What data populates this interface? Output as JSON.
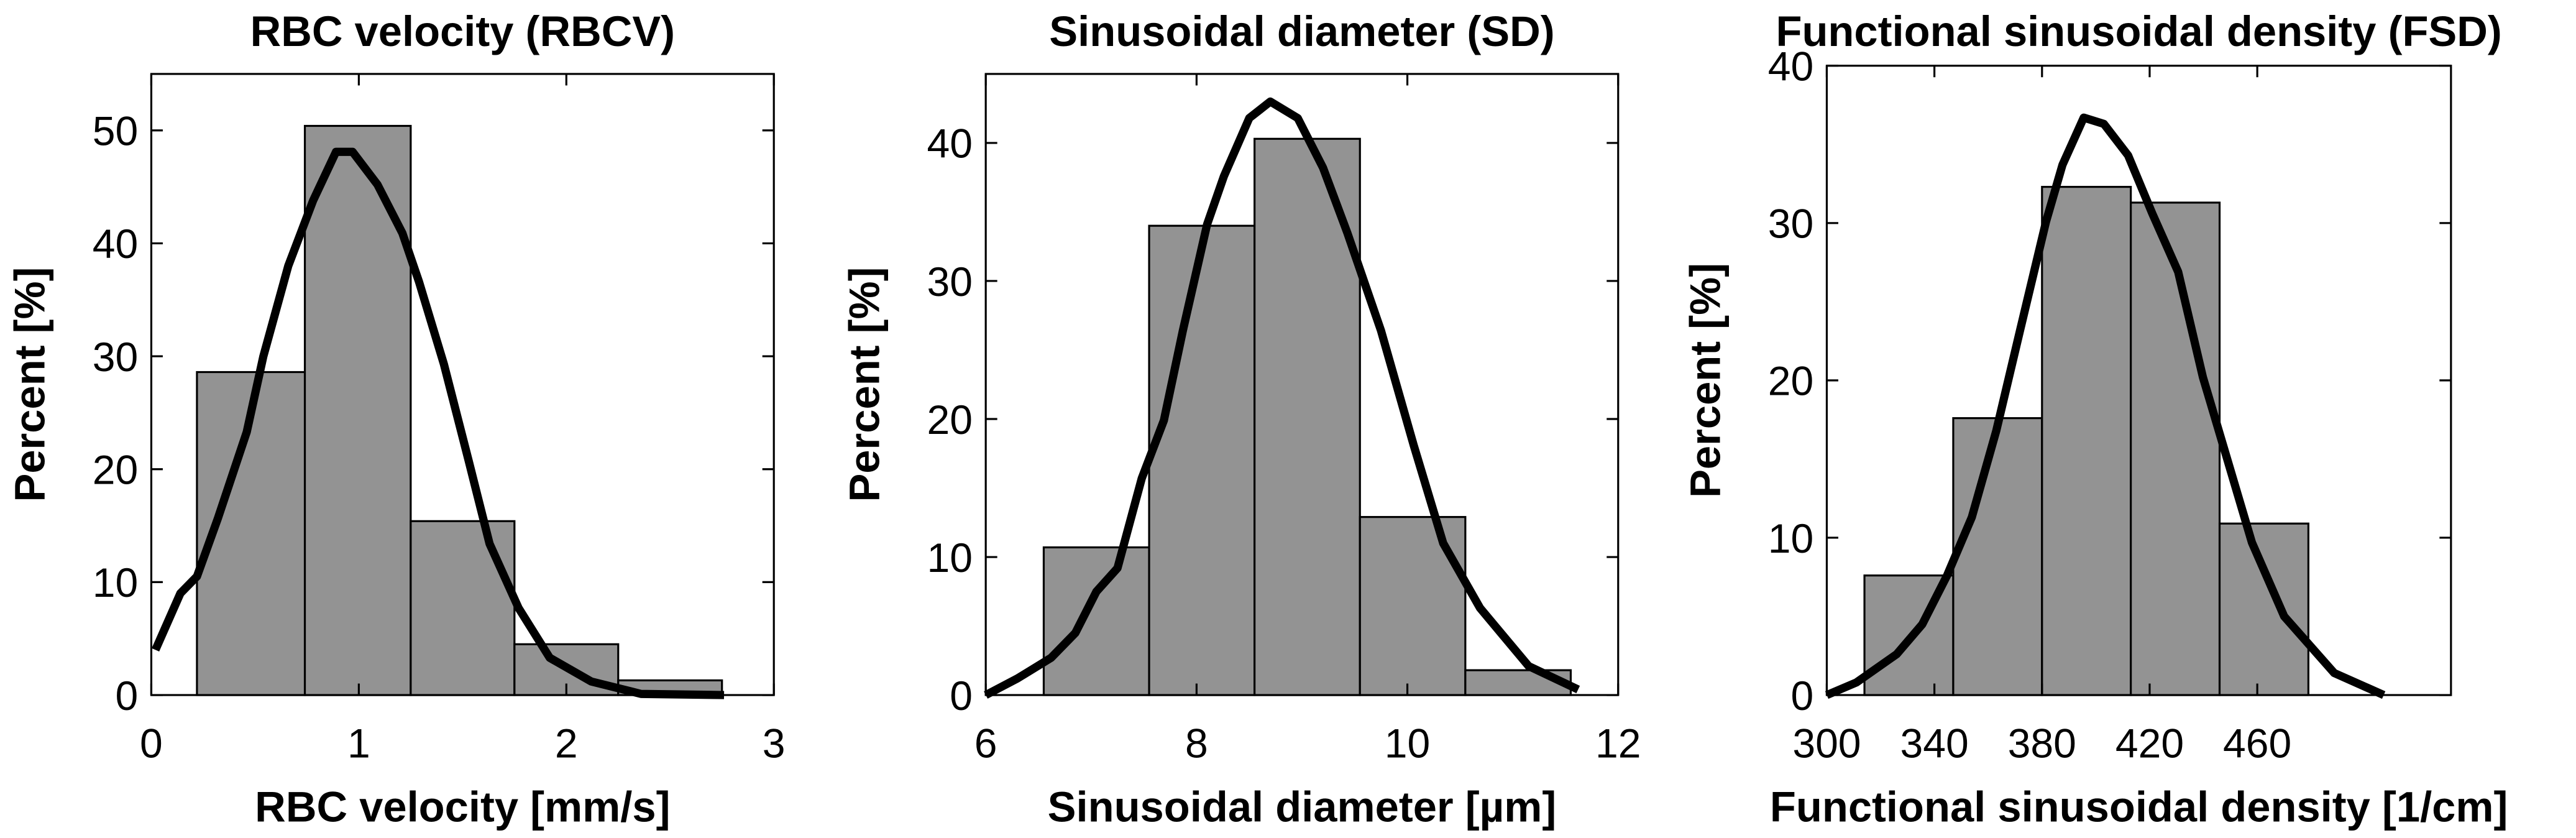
{
  "chart_data": [
    {
      "type": "histogram",
      "title": "RBC velocity (RBCV)",
      "xlabel": "RBC velocity [mm/s]",
      "ylabel": "Percent [%]",
      "bins": [
        0.22,
        0.74,
        1.25,
        1.75,
        2.25,
        2.75
      ],
      "values": [
        28.6,
        50.4,
        15.4,
        4.5,
        1.3
      ],
      "color": "#939393",
      "line": {
        "color": "#000000",
        "x": [
          0.02,
          0.14,
          0.22,
          0.32,
          0.46,
          0.54,
          0.66,
          0.78,
          0.89,
          0.97,
          1.09,
          1.21,
          1.29,
          1.41,
          1.53,
          1.63,
          1.77,
          1.92,
          2.12,
          2.36,
          2.76
        ],
        "values": [
          4,
          9,
          10.5,
          15.6,
          23.3,
          30,
          38,
          43.8,
          48.1,
          48.1,
          45.2,
          40.9,
          36.6,
          29.3,
          20.7,
          13.4,
          7.7,
          3.3,
          1.2,
          0.1,
          0
        ]
      },
      "xlim": [
        0,
        3
      ],
      "xticks": [
        0,
        1,
        2,
        3
      ],
      "ylim": [
        0,
        55
      ],
      "yticks": [
        0,
        10,
        20,
        30,
        40,
        50
      ]
    },
    {
      "type": "histogram",
      "title": "Sinusoidal diameter (SD)",
      "xlabel": "Sinusoidal diameter [µm]",
      "ylabel": "Percent [%]",
      "bins": [
        6.55,
        7.55,
        8.55,
        9.55,
        10.55,
        11.55
      ],
      "values": [
        10.7,
        34,
        40.3,
        12.9,
        1.8
      ],
      "color": "#939393",
      "line": {
        "color": "#000000",
        "x": [
          6,
          6.3,
          6.62,
          6.85,
          7.05,
          7.25,
          7.48,
          7.69,
          7.87,
          8.1,
          8.26,
          8.5,
          8.7,
          8.96,
          9.2,
          9.43,
          9.75,
          10.06,
          10.34,
          10.69,
          11.15,
          11.62
        ],
        "values": [
          0,
          1.2,
          2.7,
          4.5,
          7.5,
          9.2,
          15.7,
          19.9,
          26.4,
          34.1,
          37.6,
          41.8,
          43,
          41.8,
          38.2,
          33.5,
          26.4,
          18.1,
          11,
          6.3,
          2.1,
          0.4
        ]
      },
      "xlim": [
        6,
        12
      ],
      "xticks": [
        6,
        8,
        10,
        12
      ],
      "ylim": [
        0,
        45
      ],
      "yticks": [
        0,
        10,
        20,
        30,
        40
      ]
    },
    {
      "type": "histogram",
      "title": "Functional sinusoidal density (FSD)",
      "xlabel": "Functional sinusoidal density [1/cm]",
      "ylabel": "Percent [%]",
      "bins": [
        314,
        347,
        380,
        413,
        446,
        479
      ],
      "values": [
        7.6,
        17.6,
        32.3,
        31.3,
        10.9
      ],
      "color": "#939393",
      "line": {
        "color": "#000000",
        "x": [
          300,
          311,
          326,
          335.5,
          344.7,
          353.9,
          363,
          372,
          381.5,
          387.6,
          395.5,
          403,
          412,
          421,
          430.6,
          439.8,
          449,
          458,
          470,
          488.6,
          507
        ],
        "values": [
          0,
          0.8,
          2.6,
          4.5,
          7.6,
          11.3,
          16.8,
          23.3,
          30.1,
          33.7,
          36.7,
          36.3,
          34.3,
          30.6,
          26.9,
          20.2,
          14.9,
          9.7,
          5,
          1.4,
          0
        ]
      },
      "xlim": [
        300,
        532
      ],
      "xticks": [
        300,
        340,
        380,
        420,
        460
      ],
      "ylim": [
        0,
        40
      ],
      "yticks": [
        0,
        10,
        20,
        30,
        40
      ]
    }
  ]
}
